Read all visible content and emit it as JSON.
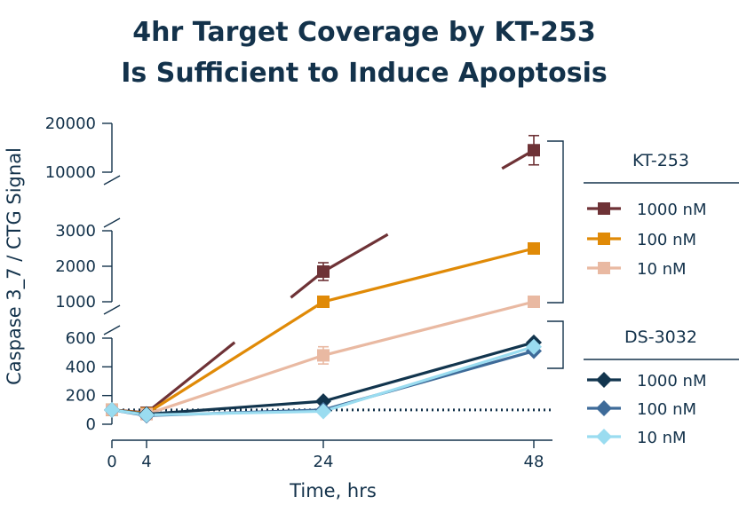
{
  "chart_data": {
    "type": "line",
    "title_lines": [
      "4hr Target Coverage by KT-253",
      "Is Sufficient to Induce Apoptosis"
    ],
    "xlabel": "Time, hrs",
    "ylabel": "Caspase 3_7 / CTG Signal",
    "x": [
      0,
      4,
      24,
      48
    ],
    "x_ticks": [
      "0",
      "4",
      "24",
      "48"
    ],
    "y_axis_broken": true,
    "y_segments": [
      {
        "range": [
          0,
          600
        ],
        "ticks": [
          0,
          200,
          400,
          600
        ]
      },
      {
        "range": [
          1000,
          3000
        ],
        "ticks": [
          1000,
          2000,
          3000
        ]
      },
      {
        "range": [
          10000,
          20000
        ],
        "ticks": [
          10000,
          20000
        ]
      }
    ],
    "baseline": {
      "y": 100,
      "style": "dotted"
    },
    "groups": [
      {
        "name": "KT-253",
        "series": [
          {
            "name": "1000 nM",
            "color": "#6e3236",
            "marker": "square",
            "values": [
              100,
              80,
              1850,
              14500
            ],
            "err": [
              0,
              0,
              250,
              3000
            ]
          },
          {
            "name": "100 nM",
            "color": "#e08a07",
            "marker": "square",
            "values": [
              100,
              75,
              1000,
              2500
            ],
            "err": [
              0,
              0,
              0,
              0
            ]
          },
          {
            "name": "10 nM",
            "color": "#e9b9a2",
            "marker": "square",
            "values": [
              100,
              70,
              480,
              1000
            ],
            "err": [
              0,
              0,
              60,
              0
            ]
          }
        ]
      },
      {
        "name": "DS-3032",
        "series": [
          {
            "name": "1000 nM",
            "color": "#12354e",
            "marker": "diamond",
            "values": [
              100,
              70,
              160,
              570
            ],
            "err": [
              0,
              0,
              0,
              0
            ]
          },
          {
            "name": "100 nM",
            "color": "#3e6b99",
            "marker": "diamond",
            "values": [
              100,
              60,
              100,
              510
            ],
            "err": [
              0,
              0,
              0,
              0
            ]
          },
          {
            "name": "10 nM",
            "color": "#9adcf0",
            "marker": "diamond",
            "values": [
              100,
              65,
              90,
              540
            ],
            "err": [
              0,
              0,
              0,
              0
            ]
          }
        ]
      }
    ],
    "legend_position": "right"
  }
}
